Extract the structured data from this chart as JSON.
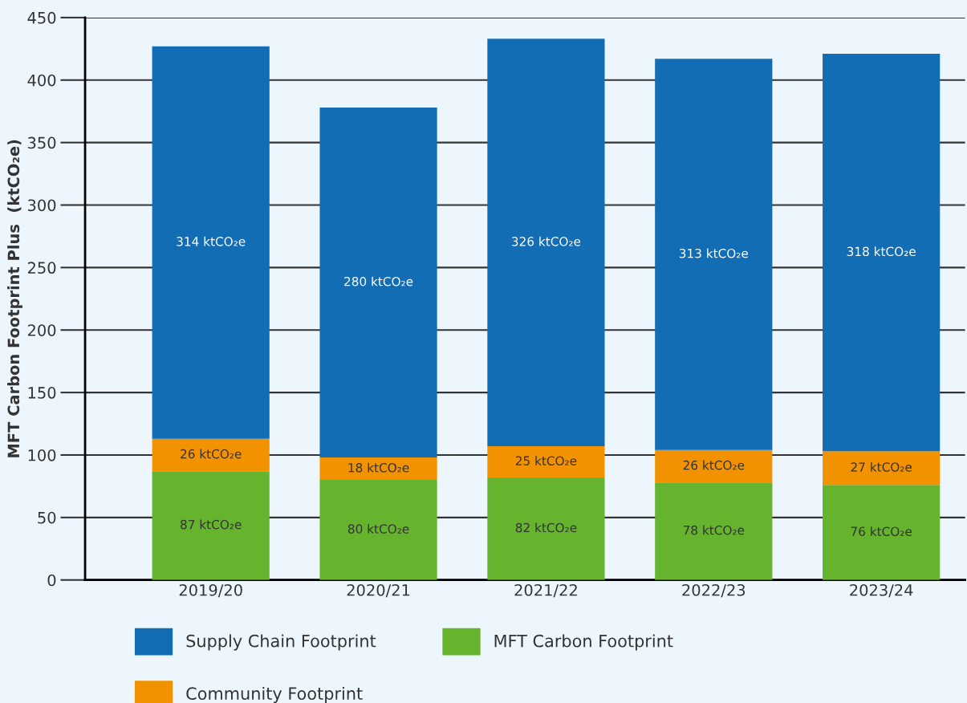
{
  "chart_data": {
    "type": "bar",
    "stacked": true,
    "ylabel": "MFT Carbon Footprint Plus  (ktCO₂e)",
    "categories": [
      "2019/20",
      "2020/21",
      "2021/22",
      "2022/23",
      "2023/24"
    ],
    "series": [
      {
        "name": "MFT Carbon Footprint",
        "color": "#66b32e",
        "values": [
          87,
          80,
          82,
          78,
          76
        ],
        "value_labels": [
          "87 ktCO₂e",
          "80 ktCO₂e",
          "82 ktCO₂e",
          "78 ktCO₂e",
          "76 ktCO₂e"
        ]
      },
      {
        "name": "Community Footprint",
        "color": "#f39200",
        "values": [
          26,
          18,
          25,
          26,
          27
        ],
        "value_labels": [
          "26 ktCO₂e",
          "18 ktCO₂e",
          "25 ktCO₂e",
          "26 ktCO₂e",
          "27 ktCO₂e"
        ]
      },
      {
        "name": "Supply Chain Footprint",
        "color": "#136db4",
        "values": [
          314,
          280,
          326,
          313,
          318
        ],
        "value_labels": [
          "314 ktCO₂e",
          "280 ktCO₂e",
          "326 ktCO₂e",
          "313 ktCO₂e",
          "318 ktCO₂e"
        ]
      }
    ],
    "ylim": [
      0,
      450
    ],
    "yticks": [
      0,
      50,
      100,
      150,
      200,
      250,
      300,
      350,
      400,
      450
    ],
    "grid": "y",
    "legend": "bottom"
  }
}
